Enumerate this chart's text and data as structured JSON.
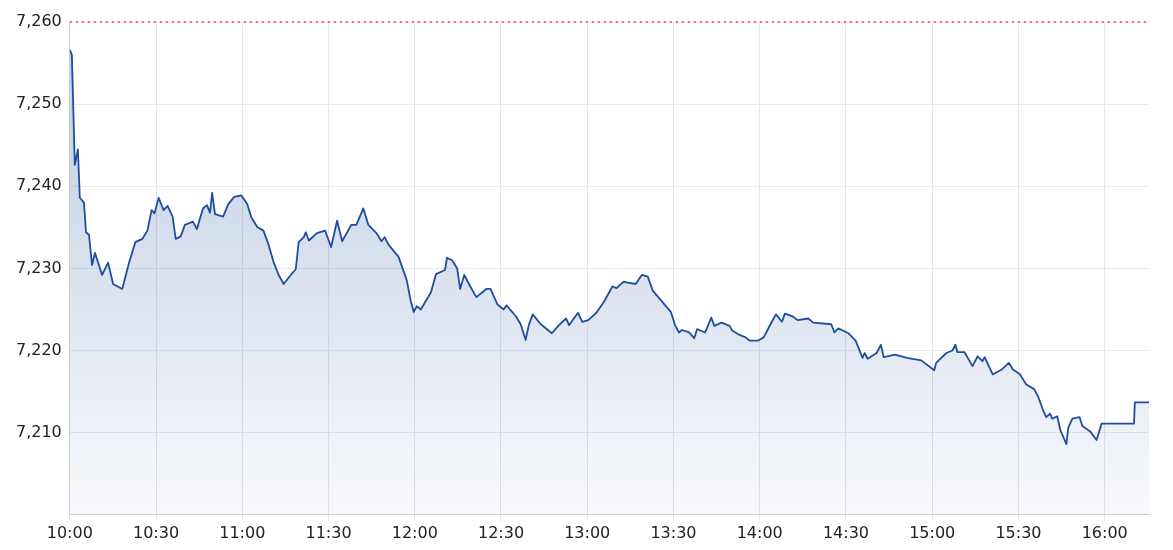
{
  "chart_data": {
    "type": "area",
    "xlim": [
      10,
      16.257
    ],
    "ylim": [
      7200,
      7260
    ],
    "xticks": [
      {
        "value": 10,
        "label": "10:00"
      },
      {
        "value": 10.5,
        "label": "10:30"
      },
      {
        "value": 11,
        "label": "11:00"
      },
      {
        "value": 11.5,
        "label": "11:30"
      },
      {
        "value": 12,
        "label": "12:00"
      },
      {
        "value": 12.5,
        "label": "12:30"
      },
      {
        "value": 13,
        "label": "13:00"
      },
      {
        "value": 13.5,
        "label": "13:30"
      },
      {
        "value": 14,
        "label": "14:00"
      },
      {
        "value": 14.5,
        "label": "14:30"
      },
      {
        "value": 15,
        "label": "15:00"
      },
      {
        "value": 15.5,
        "label": "15:30"
      },
      {
        "value": 16,
        "label": "16:00"
      }
    ],
    "yticks": [
      {
        "value": 7210,
        "label": "7,210"
      },
      {
        "value": 7220,
        "label": "7,220"
      },
      {
        "value": 7230,
        "label": "7,230"
      },
      {
        "value": 7240,
        "label": "7,240"
      },
      {
        "value": 7250,
        "label": "7,250"
      },
      {
        "value": 7260,
        "label": "7,260"
      }
    ],
    "grid": true,
    "legend": false,
    "marker": "none",
    "line_style": "solid",
    "ref_lines": [
      {
        "axis": "y",
        "value": 7260,
        "color": "#e53935",
        "line_style": "dotted"
      }
    ],
    "series": [
      {
        "color": "#1f4e9c",
        "x": [
          10.0,
          10.012,
          10.029,
          10.047,
          10.058,
          10.082,
          10.094,
          10.111,
          10.129,
          10.146,
          10.187,
          10.222,
          10.251,
          10.304,
          10.345,
          10.38,
          10.421,
          10.45,
          10.474,
          10.491,
          10.515,
          10.544,
          10.567,
          10.596,
          10.614,
          10.643,
          10.667,
          10.713,
          10.737,
          10.772,
          10.795,
          10.813,
          10.825,
          10.842,
          10.889,
          10.918,
          10.953,
          10.994,
          11.029,
          11.053,
          11.088,
          11.123,
          11.152,
          11.181,
          11.211,
          11.24,
          11.281,
          11.31,
          11.327,
          11.357,
          11.368,
          11.386,
          11.433,
          11.48,
          11.515,
          11.55,
          11.579,
          11.632,
          11.661,
          11.702,
          11.731,
          11.778,
          11.807,
          11.825,
          11.848,
          11.906,
          11.953,
          11.977,
          11.994,
          12.012,
          12.035,
          12.094,
          12.123,
          12.175,
          12.187,
          12.216,
          12.246,
          12.263,
          12.287,
          12.322,
          12.357,
          12.415,
          12.439,
          12.48,
          12.515,
          12.532,
          12.585,
          12.614,
          12.643,
          12.661,
          12.684,
          12.731,
          12.795,
          12.836,
          12.877,
          12.895,
          12.947,
          12.971,
          13.006,
          13.053,
          13.099,
          13.146,
          13.17,
          13.211,
          13.228,
          13.281,
          13.316,
          13.351,
          13.38,
          13.456,
          13.485,
          13.509,
          13.532,
          13.55,
          13.591,
          13.62,
          13.637,
          13.684,
          13.719,
          13.737,
          13.778,
          13.825,
          13.842,
          13.883,
          13.918,
          13.942,
          13.988,
          14.023,
          14.07,
          14.094,
          14.129,
          14.146,
          14.187,
          14.222,
          14.281,
          14.31,
          14.415,
          14.433,
          14.456,
          14.515,
          14.556,
          14.596,
          14.608,
          14.626,
          14.678,
          14.702,
          14.719,
          14.784,
          14.854,
          14.936,
          15.012,
          15.023,
          15.082,
          15.117,
          15.135,
          15.146,
          15.187,
          15.234,
          15.263,
          15.292,
          15.304,
          15.351,
          15.404,
          15.444,
          15.468,
          15.509,
          15.544,
          15.591,
          15.614,
          15.649,
          15.661,
          15.684,
          15.696,
          15.725,
          15.743,
          15.778,
          15.789,
          15.813,
          15.854,
          15.871,
          15.918,
          15.953,
          15.982,
          16.17,
          16.175,
          16.257
        ],
        "values": [
          7256.6,
          7256.0,
          7242.6,
          7244.5,
          7238.6,
          7238.0,
          7234.4,
          7234.1,
          7230.4,
          7231.9,
          7229.2,
          7230.7,
          7228.1,
          7227.5,
          7230.8,
          7233.2,
          7233.6,
          7234.6,
          7237.1,
          7236.7,
          7238.6,
          7237.1,
          7237.6,
          7236.3,
          7233.6,
          7233.9,
          7235.3,
          7235.7,
          7234.8,
          7237.3,
          7237.7,
          7236.8,
          7239.2,
          7236.6,
          7236.3,
          7237.8,
          7238.7,
          7238.9,
          7237.8,
          7236.2,
          7235.0,
          7234.6,
          7232.9,
          7230.8,
          7229.2,
          7228.1,
          7229.2,
          7229.9,
          7233.2,
          7233.8,
          7234.4,
          7233.4,
          7234.3,
          7234.6,
          7232.6,
          7235.8,
          7233.3,
          7235.3,
          7235.3,
          7237.3,
          7235.3,
          7234.3,
          7233.3,
          7233.8,
          7232.9,
          7231.4,
          7228.6,
          7226.0,
          7224.7,
          7225.4,
          7225.0,
          7227.1,
          7229.3,
          7229.8,
          7231.3,
          7231.0,
          7230.0,
          7227.5,
          7229.2,
          7227.8,
          7226.5,
          7227.5,
          7227.5,
          7225.6,
          7225.0,
          7225.5,
          7224.2,
          7223.2,
          7221.3,
          7223.1,
          7224.4,
          7223.2,
          7222.1,
          7223.1,
          7223.9,
          7223.1,
          7224.6,
          7223.5,
          7223.7,
          7224.6,
          7226.0,
          7227.8,
          7227.6,
          7228.4,
          7228.3,
          7228.1,
          7229.2,
          7229.0,
          7227.3,
          7225.4,
          7224.7,
          7223.1,
          7222.2,
          7222.5,
          7222.2,
          7221.5,
          7222.6,
          7222.2,
          7224.0,
          7223.0,
          7223.4,
          7223.0,
          7222.4,
          7221.9,
          7221.6,
          7221.2,
          7221.2,
          7221.6,
          7223.5,
          7224.4,
          7223.5,
          7224.5,
          7224.2,
          7223.7,
          7223.9,
          7223.4,
          7223.2,
          7222.2,
          7222.7,
          7222.1,
          7221.2,
          7219.1,
          7219.7,
          7219.0,
          7219.7,
          7220.7,
          7219.2,
          7219.5,
          7219.1,
          7218.8,
          7217.6,
          7218.5,
          7219.7,
          7220.0,
          7220.7,
          7219.8,
          7219.8,
          7218.1,
          7219.3,
          7218.7,
          7219.2,
          7217.1,
          7217.7,
          7218.5,
          7217.7,
          7217.1,
          7215.9,
          7215.3,
          7214.4,
          7212.4,
          7211.9,
          7212.3,
          7211.7,
          7212.0,
          7210.3,
          7208.6,
          7210.6,
          7211.7,
          7211.9,
          7210.8,
          7210.1,
          7209.1,
          7211.1,
          7211.1,
          7213.7,
          7213.7
        ]
      }
    ]
  }
}
